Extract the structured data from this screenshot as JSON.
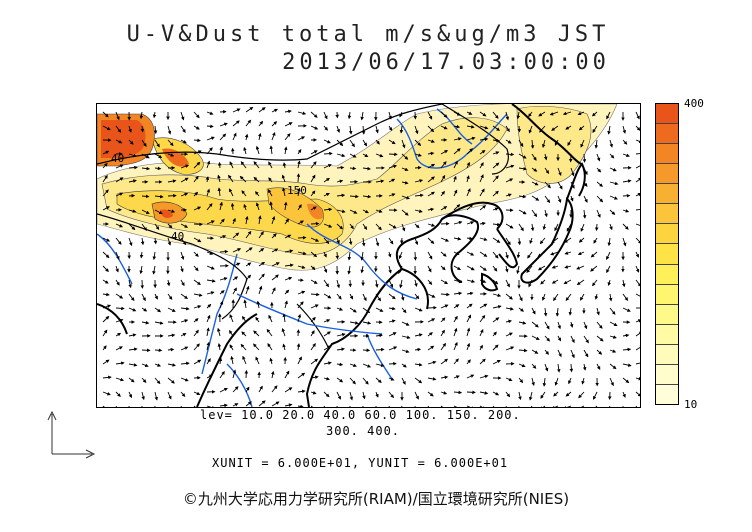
{
  "title": {
    "line1": "U-V&Dust total m/s&ug/m3 JST",
    "line2": "2013/06/17.03:00:00"
  },
  "colorbar": {
    "max_label": "400",
    "min_label": "10",
    "colors": [
      "#e8541a",
      "#ee6a1e",
      "#f28524",
      "#f59a2a",
      "#f8b032",
      "#fbc43a",
      "#fdd43f",
      "#fee347",
      "#fff05a",
      "#fff56e",
      "#fff98a",
      "#fffba4",
      "#fffcbb",
      "#fffdcc",
      "#fffed9"
    ]
  },
  "contour_labels": [
    "40",
    "150",
    "40"
  ],
  "levels": {
    "line1": "lev= 10.0 20.0 40.0 60.0 100. 150. 200.",
    "line2": "300. 400."
  },
  "units": "XUNIT = 6.000E+01, YUNIT = 6.000E+01",
  "credit": "©九州大学応用力学研究所(RIAM)/国立環境研究所(NIES)"
}
